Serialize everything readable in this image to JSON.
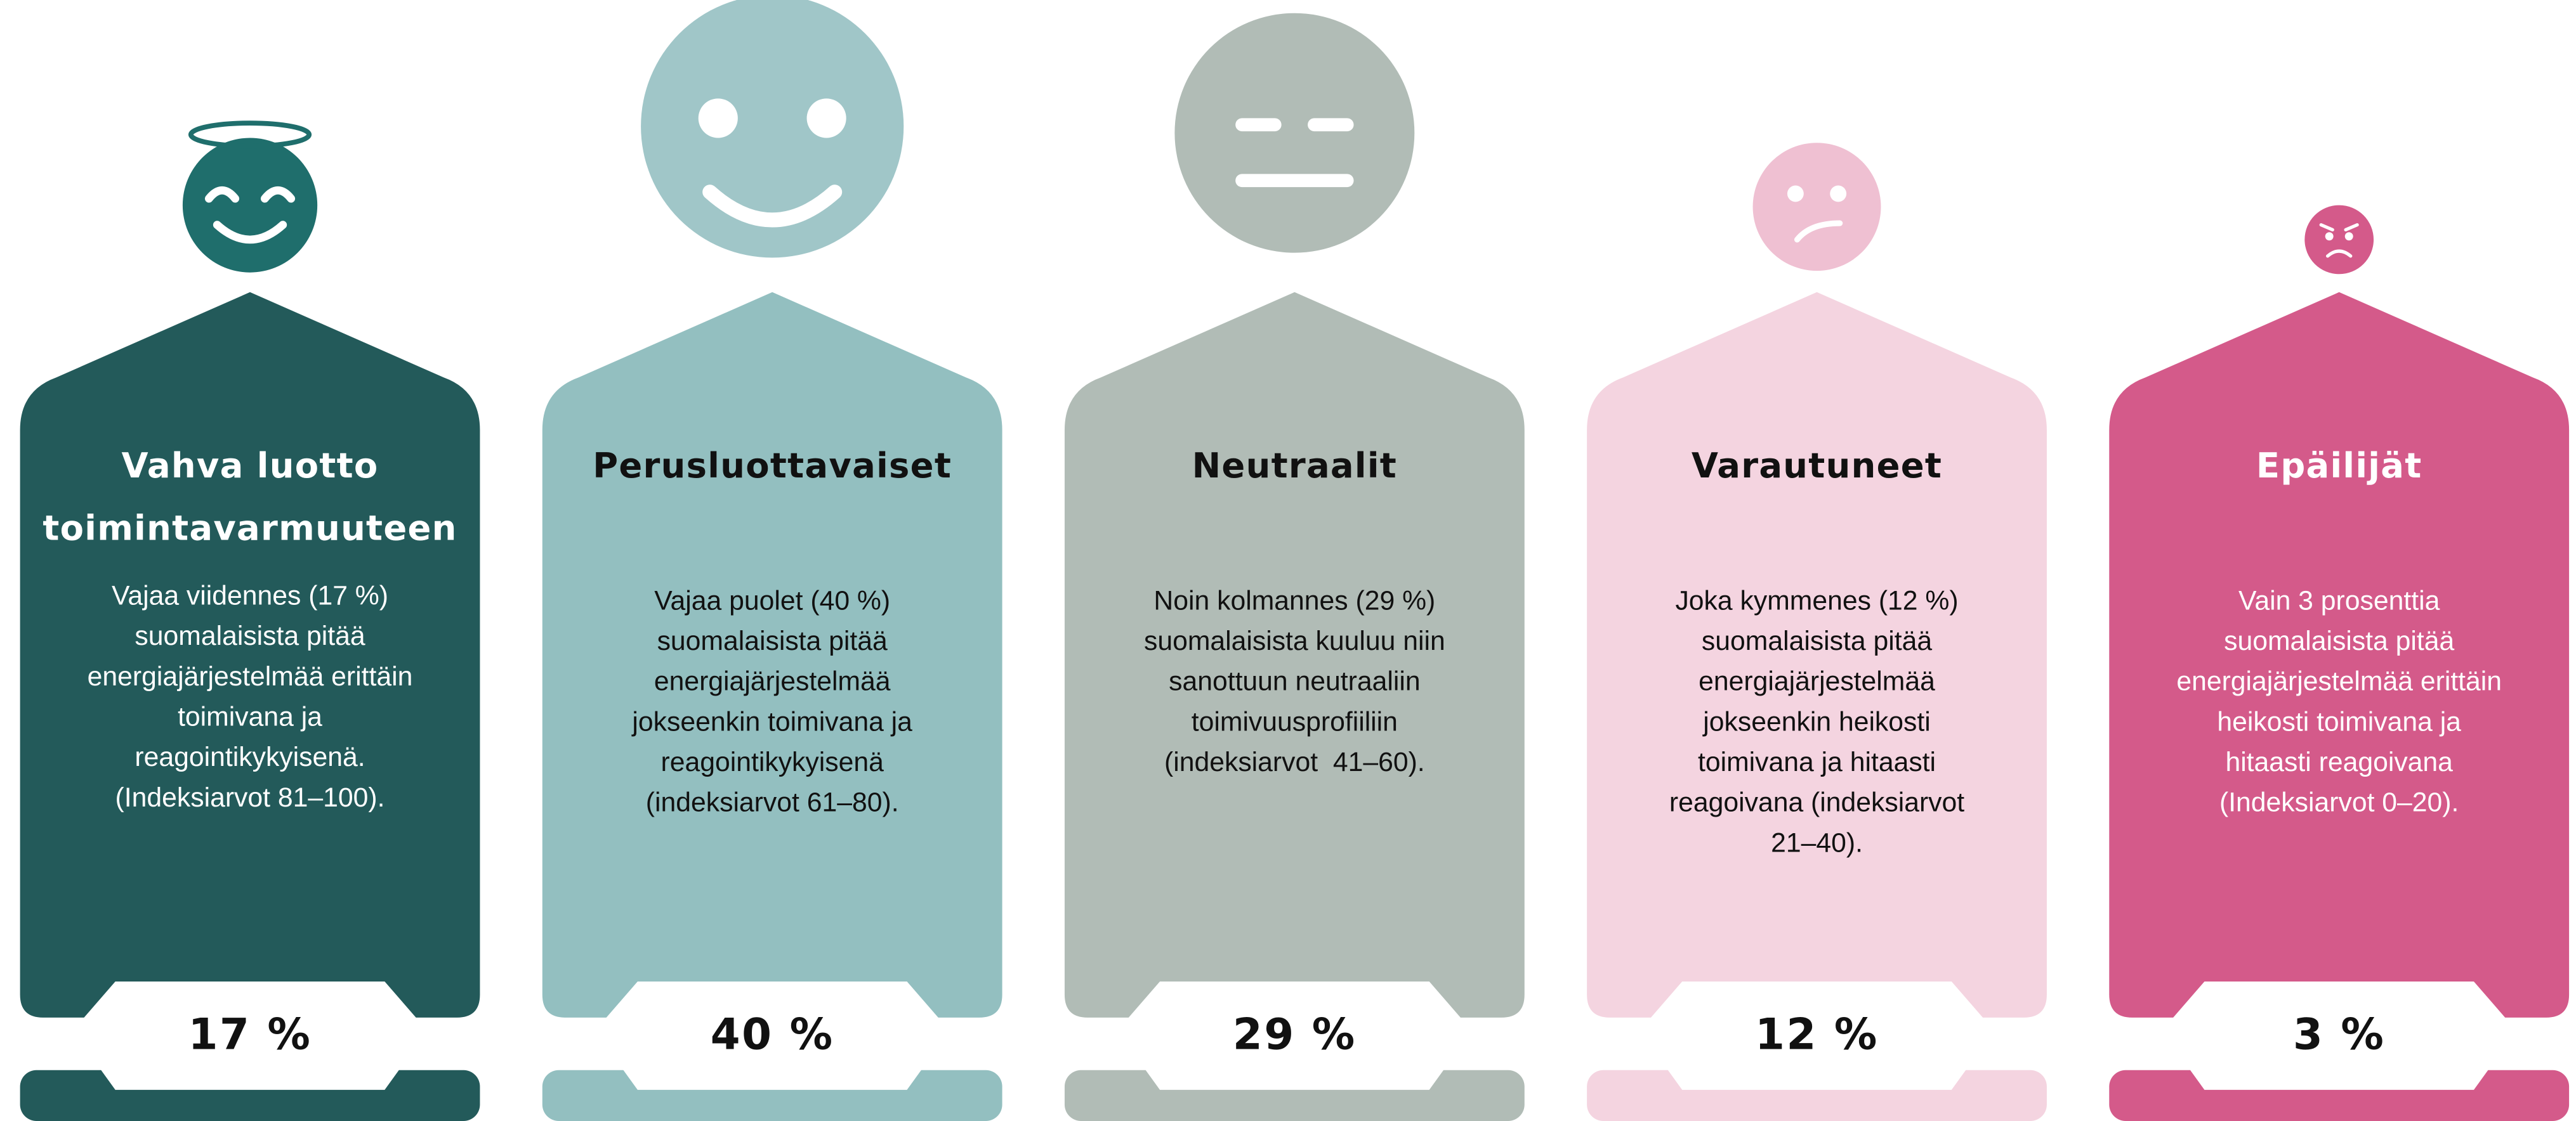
{
  "cards": [
    {
      "title": [
        "Vahva luotto",
        "toimintavarmuuteen"
      ],
      "description": [
        "Vajaa viidennes (17 %)",
        "suomalaisista pitää",
        "energiajärjestelmää erittäin",
        "toimivana ja",
        "reagointikykyisenä.",
        "(Indeksiarvot 81–100)."
      ],
      "percent": "17 %"
    },
    {
      "title": [
        "Perusluottavaiset"
      ],
      "description": [
        "Vajaa puolet (40 %)",
        "suomalaisista pitää",
        "energiajärjestelmää",
        "jokseenkin toimivana ja",
        "reagointikykyisenä",
        "(indeksiarvot 61–80)."
      ],
      "percent": "40 %"
    },
    {
      "title": [
        "Neutraalit"
      ],
      "description": [
        "Noin kolmannes (29 %)",
        "suomalaisista kuuluu niin",
        "sanottuun neutraaliin",
        "toimivuusprofiiliin",
        "(indeksiarvot  41–60)."
      ],
      "percent": "29 %"
    },
    {
      "title": [
        "Varautuneet"
      ],
      "description": [
        "Joka kymmenes (12 %)",
        "suomalaisista pitää",
        "energiajärjestelmää",
        "jokseenkin heikosti",
        "toimivana ja hitaasti",
        "reagoivana (indeksiarvot",
        "21–40)."
      ],
      "percent": "12 %"
    },
    {
      "title": [
        "Epäilijät"
      ],
      "description": [
        "Vain 3 prosenttia",
        "suomalaisista pitää",
        "energiajärjestelmää erittäin",
        "heikosti toimivana ja",
        "hitaasti reagoivana",
        "(Indeksiarvot 0–20)."
      ],
      "percent": "3 %"
    }
  ]
}
